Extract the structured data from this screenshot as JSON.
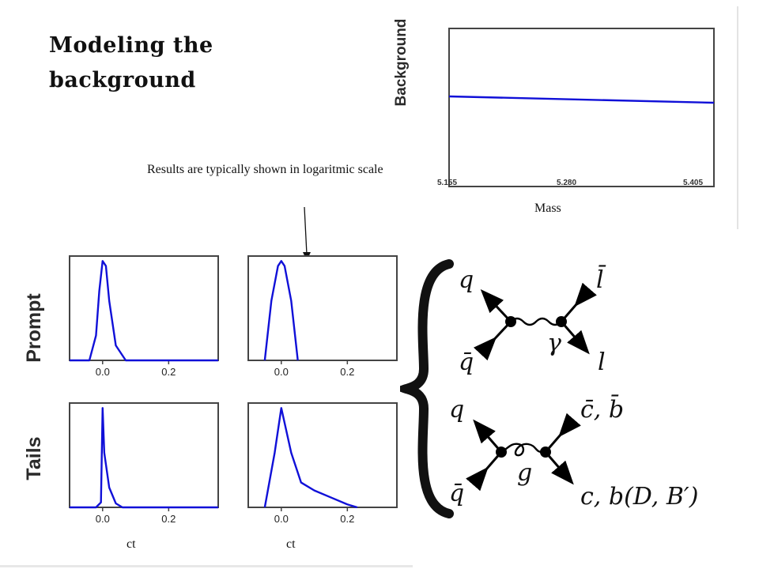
{
  "title": "Modeling the background",
  "annotation": "Results are  typically shown in logaritmic scale",
  "background_plot": {
    "ylabel": "Background",
    "xlabel": "Mass",
    "ticks": [
      "5.155",
      "5.280",
      "5.405"
    ]
  },
  "rows": {
    "prompt": "Prompt",
    "tails": "Tails"
  },
  "small_ticks": [
    "0.0",
    "0.2"
  ],
  "ct_labels": [
    "ct",
    "ct"
  ],
  "diagram": {
    "top_left_in": "q",
    "top_left_out": "q̄",
    "top_right_in": "l̄",
    "top_right_out": "l",
    "top_boson": "γ",
    "bottom_left_in": "q",
    "bottom_left_out": "q̄",
    "bottom_right_in": "c̄, b̄",
    "bottom_right_out": "c, b(D, B′)",
    "bottom_boson": "g"
  },
  "chart_data": [
    {
      "type": "line",
      "name": "background-vs-mass",
      "xlabel": "Mass",
      "ylabel": "Background",
      "xlim": [
        5.155,
        5.405
      ],
      "ylim": [
        0,
        1
      ],
      "x_ticks": [
        5.155,
        5.28,
        5.405
      ],
      "x": [
        5.155,
        5.405
      ],
      "y": [
        0.57,
        0.53
      ],
      "color": "#1010d8"
    },
    {
      "type": "line",
      "name": "prompt-linear",
      "xlabel": "ct",
      "xlim": [
        -0.1,
        0.35
      ],
      "ylim": [
        0,
        1.05
      ],
      "x_ticks": [
        0.0,
        0.2
      ],
      "x": [
        -0.1,
        -0.04,
        -0.02,
        -0.01,
        0.0,
        0.01,
        0.02,
        0.04,
        0.07,
        0.1,
        0.35
      ],
      "y": [
        0.0,
        0.0,
        0.25,
        0.7,
        1.0,
        0.95,
        0.6,
        0.15,
        0.0,
        0.0,
        0.0
      ],
      "color": "#1010d8"
    },
    {
      "type": "line",
      "name": "prompt-log",
      "xlabel": "ct",
      "xlim": [
        -0.1,
        0.35
      ],
      "ylim": [
        0,
        1.05
      ],
      "x_ticks": [
        0.0,
        0.2
      ],
      "x": [
        -0.05,
        -0.03,
        -0.01,
        0.0,
        0.01,
        0.03,
        0.05
      ],
      "y": [
        0.0,
        0.6,
        0.95,
        1.0,
        0.95,
        0.6,
        0.0
      ],
      "color": "#1010d8"
    },
    {
      "type": "line",
      "name": "tails-linear",
      "xlabel": "ct",
      "xlim": [
        -0.1,
        0.35
      ],
      "ylim": [
        0,
        1.05
      ],
      "x_ticks": [
        0.0,
        0.2
      ],
      "x": [
        -0.1,
        -0.02,
        -0.005,
        0.0,
        0.005,
        0.02,
        0.04,
        0.06,
        0.1,
        0.35
      ],
      "y": [
        0.0,
        0.0,
        0.05,
        1.0,
        0.55,
        0.2,
        0.04,
        0.0,
        0.0,
        0.0
      ],
      "color": "#1010d8"
    },
    {
      "type": "line",
      "name": "tails-log",
      "xlabel": "ct",
      "xlim": [
        -0.1,
        0.35
      ],
      "ylim": [
        0,
        1.05
      ],
      "x_ticks": [
        0.0,
        0.2
      ],
      "x": [
        -0.05,
        -0.02,
        0.0,
        0.03,
        0.06,
        0.1,
        0.15,
        0.2,
        0.23
      ],
      "y": [
        0.0,
        0.55,
        1.0,
        0.55,
        0.25,
        0.17,
        0.1,
        0.03,
        0.0
      ],
      "color": "#1010d8"
    }
  ]
}
